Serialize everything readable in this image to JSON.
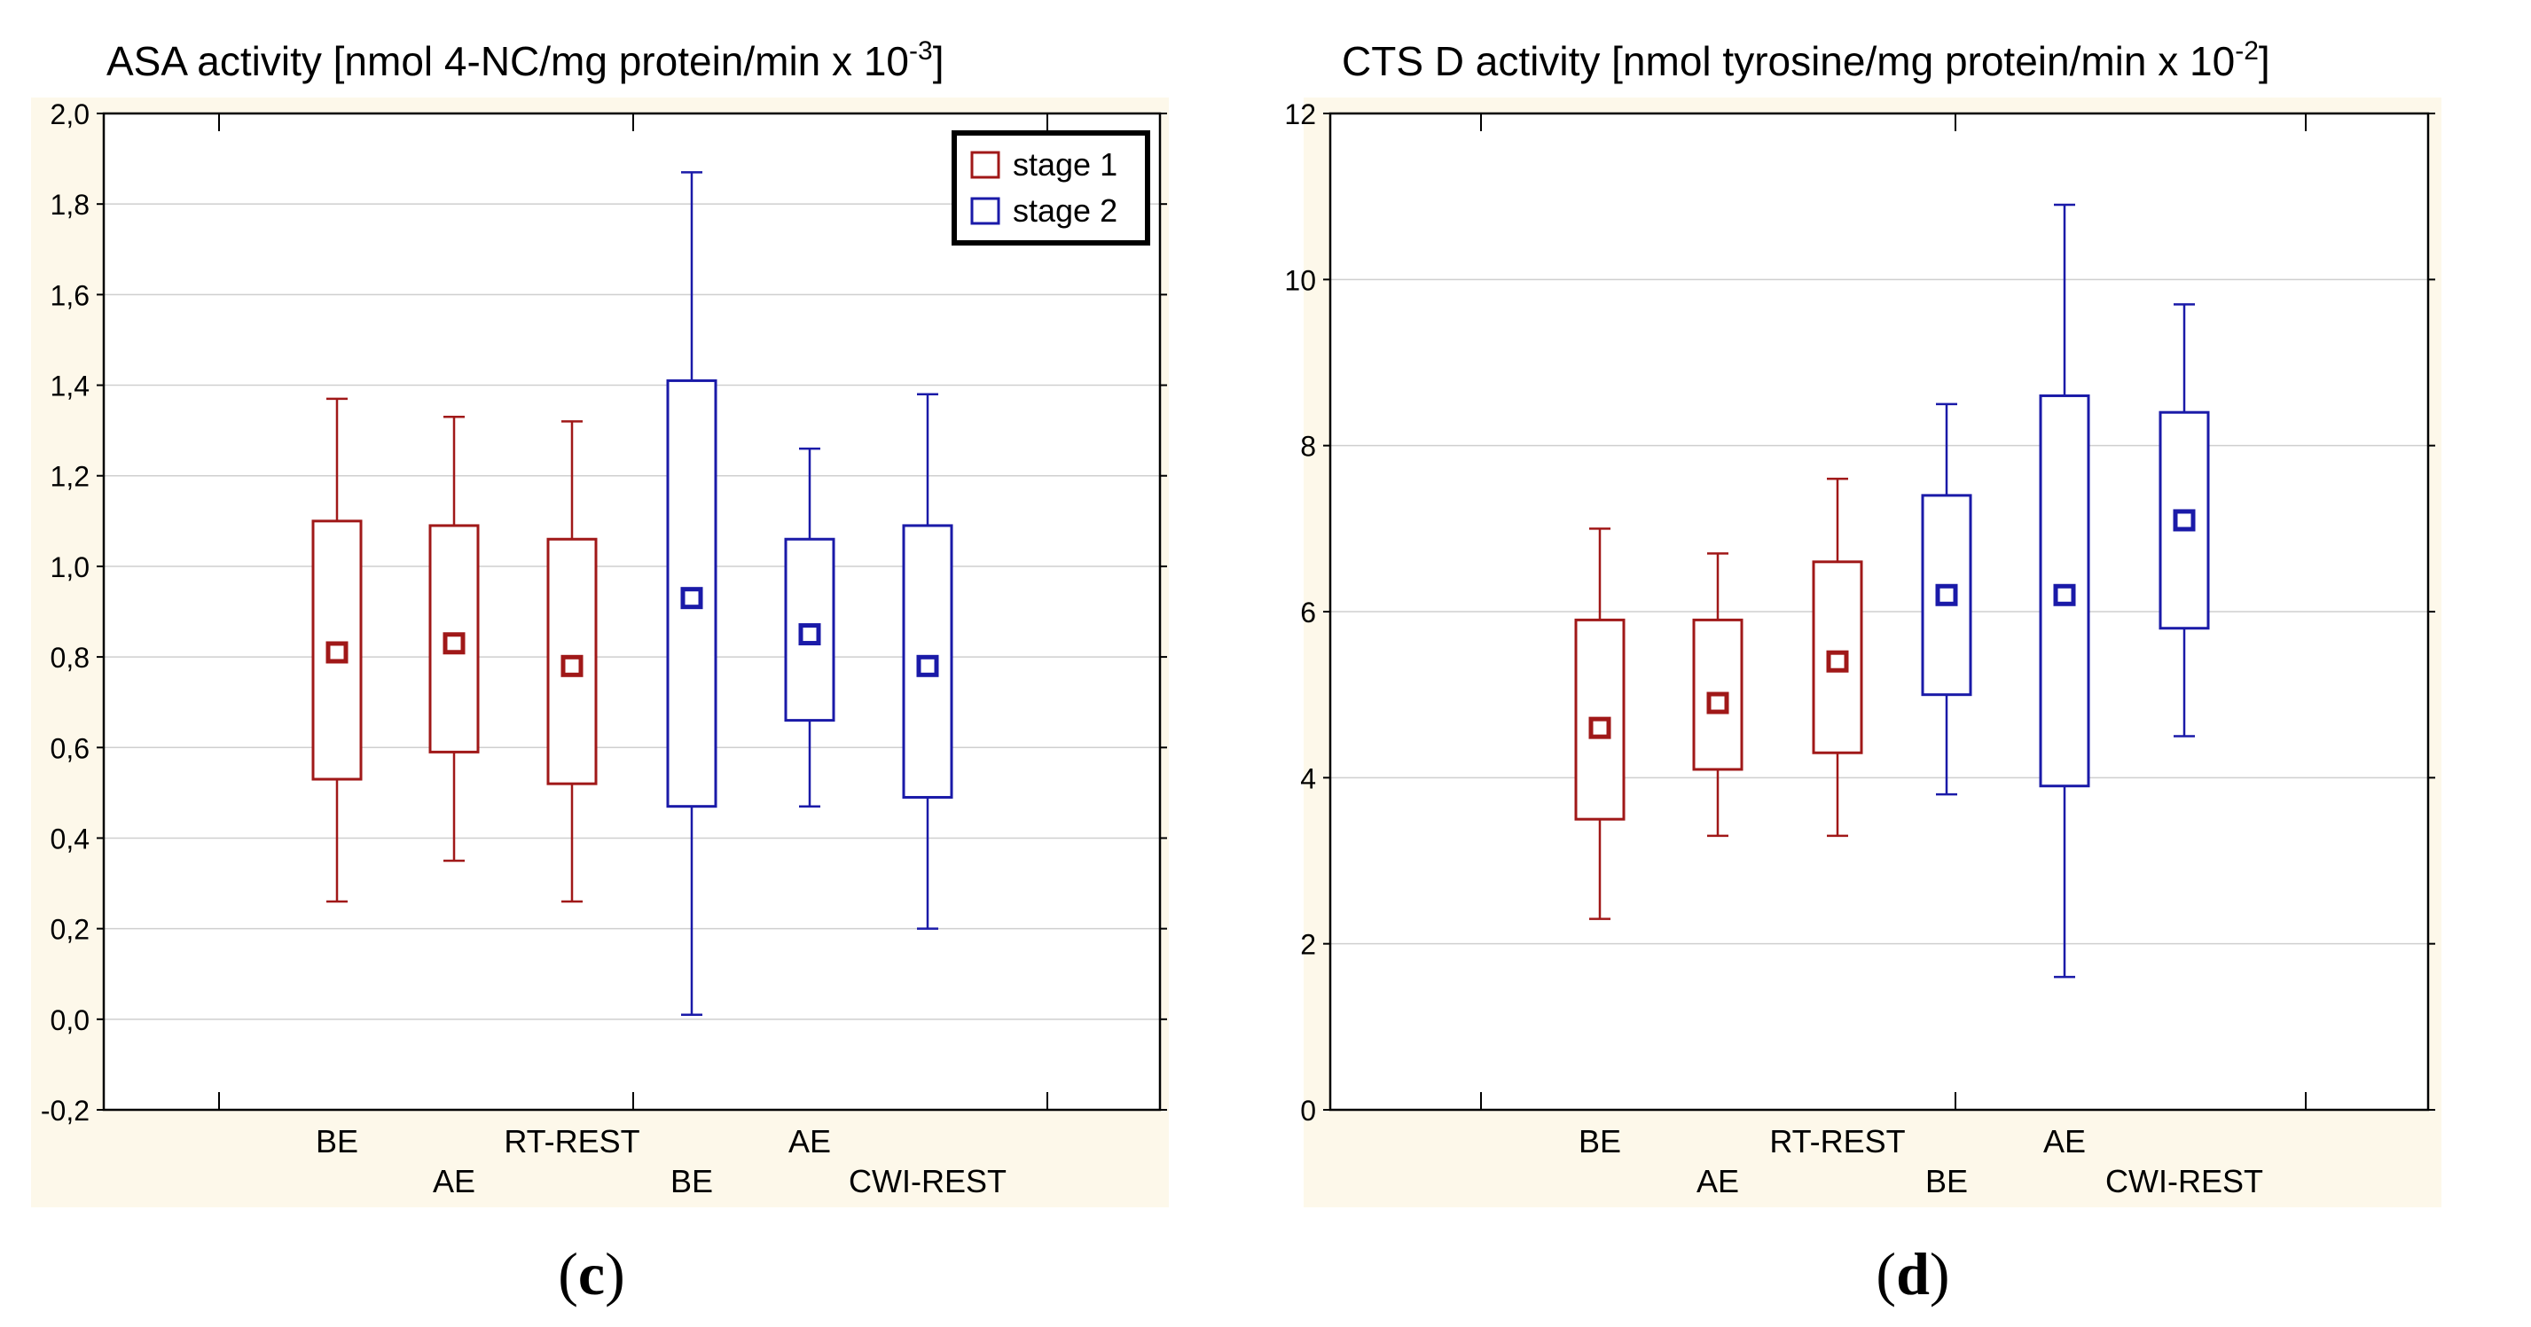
{
  "chart_data": [
    {
      "panel_label": "c",
      "type": "box",
      "title": "ASA activity [nmol 4-NC/mg protein/min x 10",
      "title_sup": "-3",
      "title_end": "]",
      "xlabel": "",
      "ylabel": "",
      "ylim": [
        -0.2,
        2.0
      ],
      "y_ticks": [
        -0.2,
        0.0,
        0.2,
        0.4,
        0.6,
        0.8,
        1.0,
        1.2,
        1.4,
        1.6,
        1.8,
        2.0
      ],
      "y_tick_labels": [
        "-0,2",
        "0,0",
        "0,2",
        "0,4",
        "0,6",
        "0,8",
        "1,0",
        "1,2",
        "1,4",
        "1,6",
        "1,8",
        "2,0"
      ],
      "grid": true,
      "legend_position": "top-right",
      "legend": [
        {
          "label": "stage 1",
          "color": "#a01818"
        },
        {
          "label": "stage 2",
          "color": "#1a1aa8"
        }
      ],
      "categories": [
        "BE",
        "AE",
        "RT-REST",
        "BE",
        "AE",
        "CWI-REST"
      ],
      "boxes": [
        {
          "category": "BE",
          "series": "stage 1",
          "whisker_low": 0.26,
          "q1": 0.53,
          "mean": 0.81,
          "q3": 1.1,
          "whisker_high": 1.37
        },
        {
          "category": "AE",
          "series": "stage 1",
          "whisker_low": 0.35,
          "q1": 0.59,
          "mean": 0.83,
          "q3": 1.09,
          "whisker_high": 1.33
        },
        {
          "category": "RT-REST",
          "series": "stage 1",
          "whisker_low": 0.26,
          "q1": 0.52,
          "mean": 0.78,
          "q3": 1.06,
          "whisker_high": 1.32
        },
        {
          "category": "BE",
          "series": "stage 2",
          "whisker_low": 0.01,
          "q1": 0.47,
          "mean": 0.93,
          "q3": 1.41,
          "whisker_high": 1.87
        },
        {
          "category": "AE",
          "series": "stage 2",
          "whisker_low": 0.47,
          "q1": 0.66,
          "mean": 0.85,
          "q3": 1.06,
          "whisker_high": 1.26
        },
        {
          "category": "CWI-REST",
          "series": "stage 2",
          "whisker_low": 0.2,
          "q1": 0.49,
          "mean": 0.78,
          "q3": 1.09,
          "whisker_high": 1.38
        }
      ]
    },
    {
      "panel_label": "d",
      "type": "box",
      "title": "CTS D activity [nmol tyrosine/mg protein/min x 10",
      "title_sup": "-2",
      "title_end": "]",
      "xlabel": "",
      "ylabel": "",
      "ylim": [
        0,
        12
      ],
      "y_ticks": [
        0,
        2,
        4,
        6,
        8,
        10,
        12
      ],
      "y_tick_labels": [
        "0",
        "2",
        "4",
        "6",
        "8",
        "10",
        "12"
      ],
      "grid": true,
      "legend_position": "none",
      "legend": [],
      "categories": [
        "BE",
        "AE",
        "RT-REST",
        "BE",
        "AE",
        "CWI-REST"
      ],
      "boxes": [
        {
          "category": "BE",
          "series": "stage 1",
          "whisker_low": 2.3,
          "q1": 3.5,
          "mean": 4.6,
          "q3": 5.9,
          "whisker_high": 7.0
        },
        {
          "category": "AE",
          "series": "stage 1",
          "whisker_low": 3.3,
          "q1": 4.1,
          "mean": 4.9,
          "q3": 5.9,
          "whisker_high": 6.7
        },
        {
          "category": "RT-REST",
          "series": "stage 1",
          "whisker_low": 3.3,
          "q1": 4.3,
          "mean": 5.4,
          "q3": 6.6,
          "whisker_high": 7.6
        },
        {
          "category": "BE",
          "series": "stage 2",
          "whisker_low": 3.8,
          "q1": 5.0,
          "mean": 6.2,
          "q3": 7.4,
          "whisker_high": 8.5
        },
        {
          "category": "AE",
          "series": "stage 2",
          "whisker_low": 1.6,
          "q1": 3.9,
          "mean": 6.2,
          "q3": 8.6,
          "whisker_high": 10.9
        },
        {
          "category": "CWI-REST",
          "series": "stage 2",
          "whisker_low": 4.5,
          "q1": 5.8,
          "mean": 7.1,
          "q3": 8.4,
          "whisker_high": 9.7
        }
      ]
    }
  ]
}
